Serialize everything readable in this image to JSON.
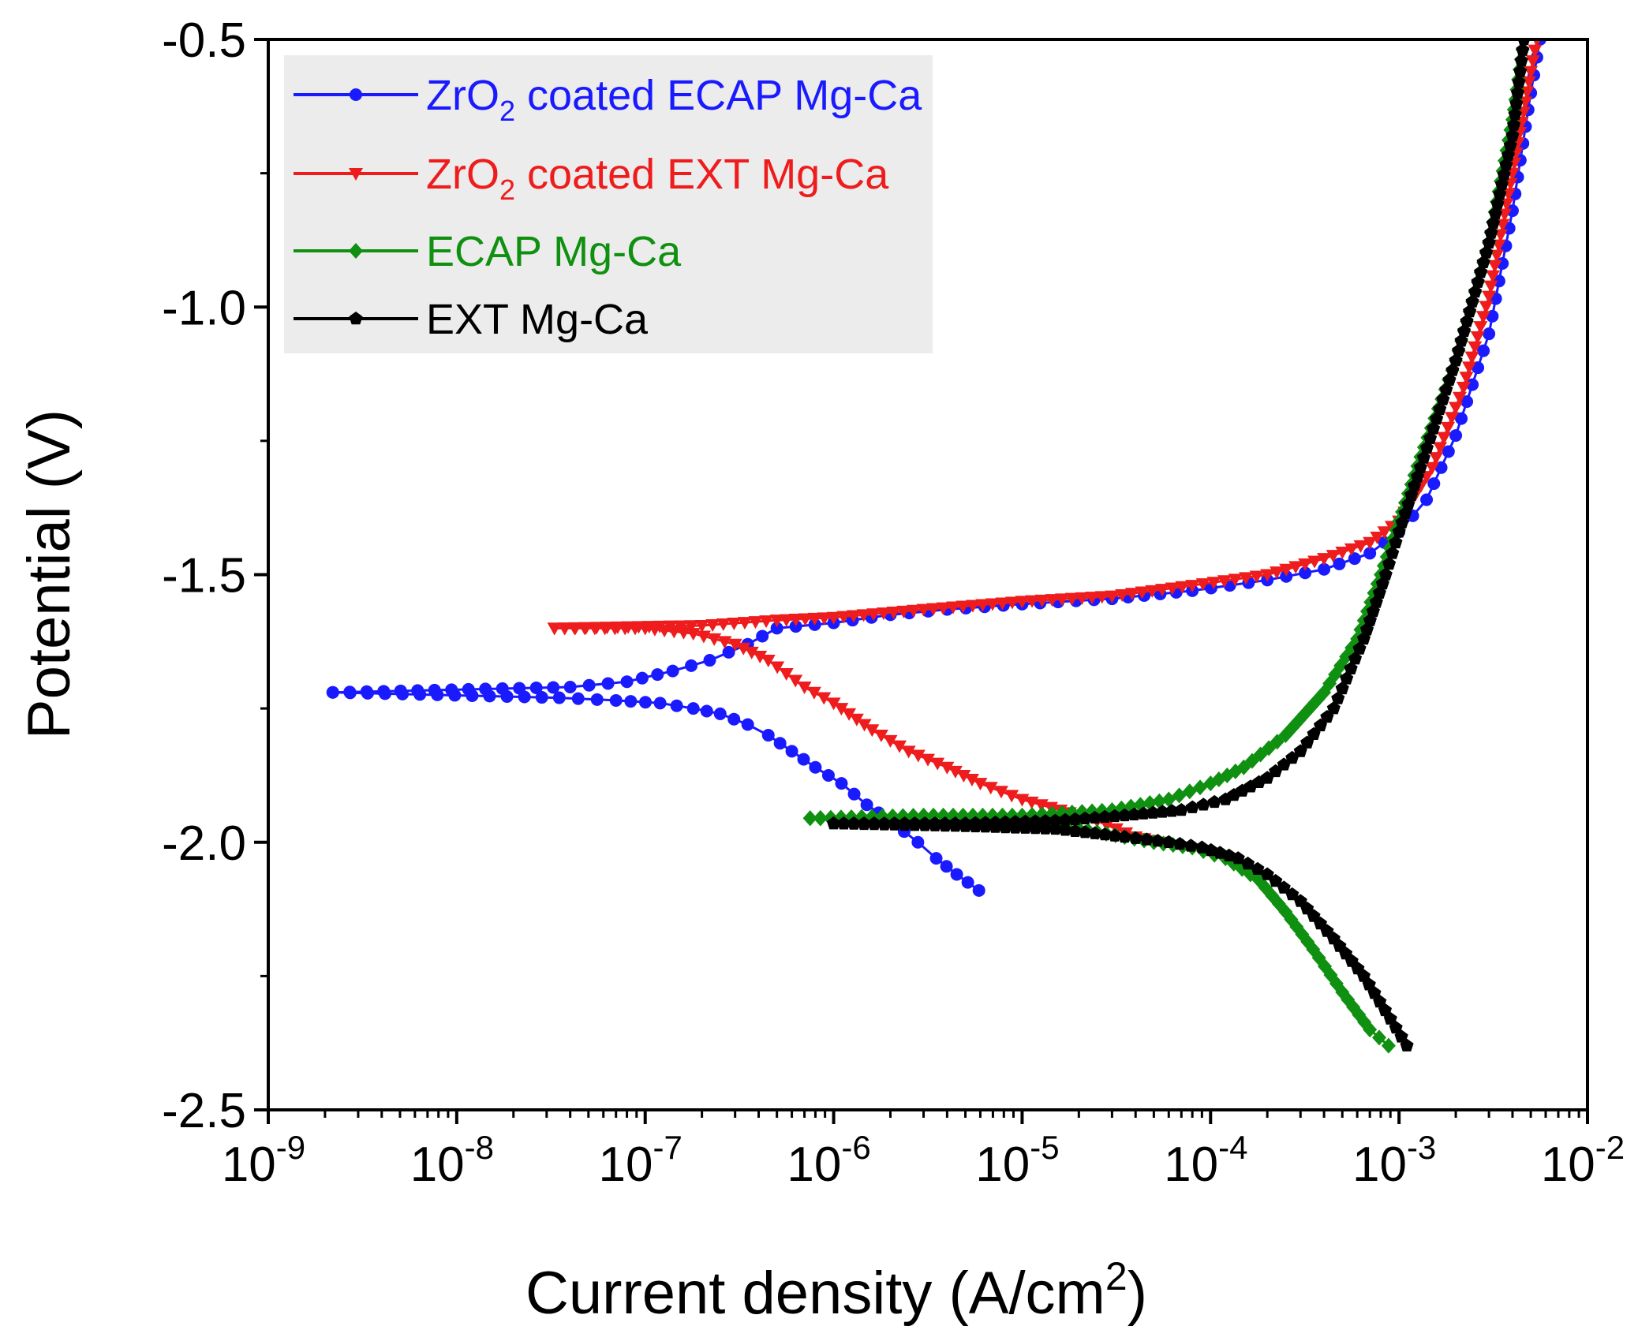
{
  "chart_data": {
    "type": "line",
    "title": "",
    "xlabel": "Current density (A/cm²)",
    "xlabel_parts": {
      "main": "Current density (A/cm",
      "sup": "2",
      "tail": ")"
    },
    "ylabel": "Potential (V)",
    "xscale": "log",
    "xlim": [
      1e-09,
      0.01
    ],
    "ylim": [
      -2.5,
      -0.5
    ],
    "grid": false,
    "legend_position": "top-left",
    "y_ticks": [
      {
        "value": -0.5,
        "label": "-0.5"
      },
      {
        "value": -1.0,
        "label": "-1.0"
      },
      {
        "value": -1.5,
        "label": "-1.5"
      },
      {
        "value": -2.0,
        "label": "-2.0"
      },
      {
        "value": -2.5,
        "label": "-2.5"
      }
    ],
    "x_ticks": [
      {
        "value": 1e-09,
        "base": "10",
        "exp": "-9"
      },
      {
        "value": 1e-08,
        "base": "10",
        "exp": "-8"
      },
      {
        "value": 1e-07,
        "base": "10",
        "exp": "-7"
      },
      {
        "value": 1e-06,
        "base": "10",
        "exp": "-6"
      },
      {
        "value": 1e-05,
        "base": "10",
        "exp": "-5"
      },
      {
        "value": 0.0001,
        "base": "10",
        "exp": "-4"
      },
      {
        "value": 0.001,
        "base": "10",
        "exp": "-3"
      },
      {
        "value": 0.01,
        "base": "10",
        "exp": "-2"
      }
    ],
    "series": [
      {
        "name": "ZrO2 coated ECAP Mg-Ca",
        "label_parts": {
          "a": "ZrO",
          "sub": "2",
          "b": " coated ECAP Mg-Ca"
        },
        "color": "#1a1aff",
        "marker": "circle",
        "cathodic": [
          [
            5.9e-06,
            -2.09
          ],
          [
            4.5e-06,
            -2.06
          ],
          [
            3.5e-06,
            -2.03
          ],
          [
            2.8e-06,
            -2.0
          ],
          [
            2e-06,
            -1.96
          ],
          [
            1.5e-06,
            -1.93
          ],
          [
            1.1e-06,
            -1.89
          ],
          [
            8e-07,
            -1.86
          ],
          [
            6e-07,
            -1.83
          ],
          [
            4.5e-07,
            -1.8
          ],
          [
            3.5e-07,
            -1.78
          ],
          [
            2.5e-07,
            -1.76
          ],
          [
            1.8e-07,
            -1.75
          ],
          [
            1.2e-07,
            -1.74
          ],
          [
            7e-08,
            -1.735
          ],
          [
            3.5e-08,
            -1.73
          ],
          [
            2.2e-09,
            -1.72
          ]
        ],
        "anodic": [
          [
            2.2e-09,
            -1.72
          ],
          [
            4e-08,
            -1.71
          ],
          [
            8e-08,
            -1.7
          ],
          [
            1.4e-07,
            -1.68
          ],
          [
            2.2e-07,
            -1.66
          ],
          [
            3.5e-07,
            -1.63
          ],
          [
            5e-07,
            -1.6
          ],
          [
            1e-06,
            -1.59
          ],
          [
            2e-06,
            -1.575
          ],
          [
            4e-06,
            -1.565
          ],
          [
            1e-05,
            -1.555
          ],
          [
            3e-05,
            -1.545
          ],
          [
            8e-05,
            -1.53
          ],
          [
            0.0002,
            -1.51
          ],
          [
            0.0004,
            -1.49
          ],
          [
            0.0007,
            -1.46
          ],
          [
            0.001,
            -1.42
          ],
          [
            0.0014,
            -1.36
          ],
          [
            0.002,
            -1.24
          ],
          [
            0.003,
            -1.05
          ],
          [
            0.004,
            -0.82
          ],
          [
            0.005,
            -0.6
          ],
          [
            0.0056,
            -0.5
          ]
        ]
      },
      {
        "name": "ZrO2 coated EXT Mg-Ca",
        "label_parts": {
          "a": "ZrO",
          "sub": "2",
          "b": " coated EXT Mg-Ca"
        },
        "color": "#ee1c1c",
        "marker": "triangle-down",
        "cathodic": [
          [
            5.5e-05,
            -2.0
          ],
          [
            4e-05,
            -1.99
          ],
          [
            2.5e-05,
            -1.96
          ],
          [
            1.6e-05,
            -1.94
          ],
          [
            1e-05,
            -1.92
          ],
          [
            6e-06,
            -1.89
          ],
          [
            4e-06,
            -1.86
          ],
          [
            2.5e-06,
            -1.83
          ],
          [
            1.6e-06,
            -1.79
          ],
          [
            1e-06,
            -1.74
          ],
          [
            7e-07,
            -1.71
          ],
          [
            4.5e-07,
            -1.66
          ],
          [
            3e-07,
            -1.63
          ],
          [
            1.8e-07,
            -1.61
          ],
          [
            1e-07,
            -1.6
          ],
          [
            3.3e-08,
            -1.6
          ]
        ],
        "anodic": [
          [
            3.3e-08,
            -1.6
          ],
          [
            2e-07,
            -1.595
          ],
          [
            5e-07,
            -1.585
          ],
          [
            1e-06,
            -1.58
          ],
          [
            3e-06,
            -1.565
          ],
          [
            1e-05,
            -1.55
          ],
          [
            3e-05,
            -1.54
          ],
          [
            8e-05,
            -1.52
          ],
          [
            0.0002,
            -1.5
          ],
          [
            0.0004,
            -1.47
          ],
          [
            0.0007,
            -1.44
          ],
          [
            0.001,
            -1.4
          ],
          [
            0.0015,
            -1.3
          ],
          [
            0.0022,
            -1.15
          ],
          [
            0.003,
            -0.98
          ],
          [
            0.004,
            -0.75
          ],
          [
            0.005,
            -0.56
          ],
          [
            0.0054,
            -0.5
          ]
        ]
      },
      {
        "name": "ECAP Mg-Ca",
        "label_parts": {
          "a": "ECAP Mg-Ca",
          "sub": "",
          "b": ""
        },
        "color": "#109010",
        "marker": "diamond",
        "cathodic": [
          [
            0.00088,
            -2.38
          ],
          [
            0.0007,
            -2.35
          ],
          [
            0.0005,
            -2.28
          ],
          [
            0.00035,
            -2.2
          ],
          [
            0.00025,
            -2.13
          ],
          [
            0.00018,
            -2.07
          ],
          [
            0.00012,
            -2.03
          ],
          [
            8e-05,
            -2.01
          ],
          [
            5e-05,
            -2.0
          ],
          [
            3.5e-05,
            -1.99
          ],
          [
            2e-05,
            -1.975
          ],
          [
            8e-06,
            -1.965
          ],
          [
            3e-06,
            -1.96
          ],
          [
            7.5e-07,
            -1.955
          ]
        ],
        "anodic": [
          [
            7.5e-07,
            -1.955
          ],
          [
            3e-06,
            -1.95
          ],
          [
            1e-05,
            -1.95
          ],
          [
            3e-05,
            -1.94
          ],
          [
            6e-05,
            -1.92
          ],
          [
            0.0001,
            -1.89
          ],
          [
            0.00015,
            -1.86
          ],
          [
            0.00025,
            -1.8
          ],
          [
            0.0004,
            -1.72
          ],
          [
            0.0006,
            -1.62
          ],
          [
            0.0008,
            -1.5
          ],
          [
            0.001,
            -1.4
          ],
          [
            0.0013,
            -1.28
          ],
          [
            0.002,
            -1.1
          ],
          [
            0.003,
            -0.88
          ],
          [
            0.004,
            -0.65
          ],
          [
            0.0046,
            -0.5
          ]
        ]
      },
      {
        "name": "EXT Mg-Ca",
        "label_parts": {
          "a": "EXT Mg-Ca",
          "sub": "",
          "b": ""
        },
        "color": "#000000",
        "marker": "pentagon",
        "cathodic": [
          [
            0.0011,
            -2.38
          ],
          [
            0.0009,
            -2.33
          ],
          [
            0.00065,
            -2.25
          ],
          [
            0.00045,
            -2.18
          ],
          [
            0.0003,
            -2.11
          ],
          [
            0.0002,
            -2.06
          ],
          [
            0.00014,
            -2.03
          ],
          [
            9e-05,
            -2.01
          ],
          [
            6e-05,
            -2.0
          ],
          [
            3.5e-05,
            -1.99
          ],
          [
            1.5e-05,
            -1.975
          ],
          [
            5e-06,
            -1.97
          ],
          [
            1e-06,
            -1.965
          ]
        ],
        "anodic": [
          [
            1e-06,
            -1.965
          ],
          [
            5e-06,
            -1.965
          ],
          [
            1.5e-05,
            -1.96
          ],
          [
            3.5e-05,
            -1.95
          ],
          [
            7e-05,
            -1.94
          ],
          [
            0.00012,
            -1.92
          ],
          [
            0.0002,
            -1.88
          ],
          [
            0.0003,
            -1.83
          ],
          [
            0.00045,
            -1.75
          ],
          [
            0.00065,
            -1.62
          ],
          [
            0.00085,
            -1.5
          ],
          [
            0.001,
            -1.42
          ],
          [
            0.0013,
            -1.3
          ],
          [
            0.002,
            -1.1
          ],
          [
            0.003,
            -0.88
          ],
          [
            0.004,
            -0.68
          ],
          [
            0.0046,
            -0.5
          ]
        ]
      }
    ]
  }
}
